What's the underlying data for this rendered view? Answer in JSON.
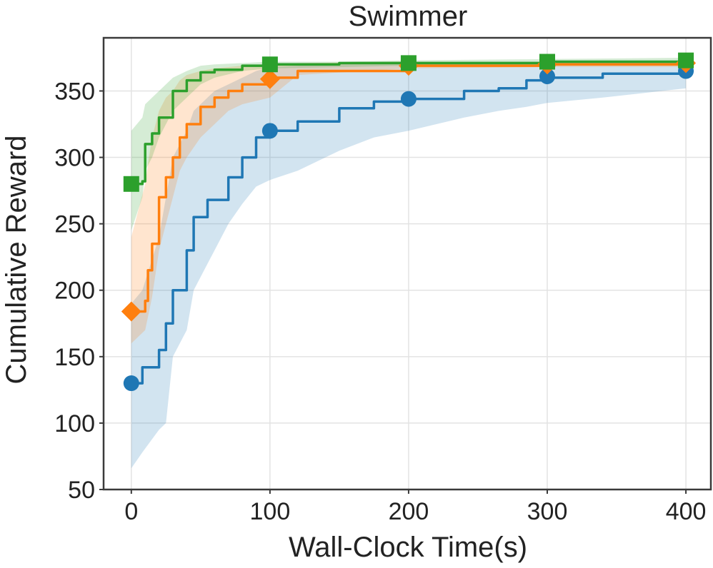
{
  "chart_data": {
    "type": "line",
    "title": "Swimmer",
    "xlabel": "Wall-Clock Time(s)",
    "ylabel": "Cumulative Reward",
    "xlim": [
      -20,
      418
    ],
    "ylim": [
      50,
      390
    ],
    "xticks": [
      0,
      100,
      200,
      300,
      400
    ],
    "yticks": [
      50,
      100,
      150,
      200,
      250,
      300,
      350
    ],
    "grid": true,
    "legend": null,
    "series": [
      {
        "name": "blue-circle",
        "color": "#1f77b4",
        "marker": "circle",
        "band_opacity": 0.2,
        "x": [
          0,
          8,
          20,
          25,
          30,
          40,
          45,
          55,
          60,
          70,
          80,
          90,
          100,
          120,
          150,
          175,
          200,
          240,
          265,
          285,
          300,
          340,
          400
        ],
        "y": [
          130,
          142,
          155,
          175,
          200,
          230,
          255,
          268,
          268,
          285,
          300,
          315,
          320,
          327,
          337,
          342,
          344,
          350,
          352,
          358,
          360,
          363,
          365
        ],
        "lower": [
          66,
          78,
          95,
          100,
          150,
          170,
          200,
          220,
          230,
          250,
          265,
          278,
          283,
          290,
          305,
          315,
          320,
          330,
          335,
          338,
          341,
          345,
          352
        ],
        "upper": [
          190,
          200,
          240,
          270,
          300,
          320,
          335,
          345,
          350,
          355,
          360,
          365,
          368,
          369,
          370,
          371,
          371,
          372,
          372,
          372,
          372,
          372,
          372
        ],
        "markers_x": [
          0,
          100,
          200,
          300,
          400
        ],
        "markers_y": [
          130,
          320,
          344,
          361,
          365
        ]
      },
      {
        "name": "orange-diamond",
        "color": "#ff7f0e",
        "marker": "diamond",
        "band_opacity": 0.2,
        "x": [
          0,
          10,
          12,
          15,
          20,
          25,
          30,
          35,
          40,
          50,
          60,
          70,
          80,
          100,
          120,
          200,
          300,
          400
        ],
        "y": [
          184,
          192,
          215,
          235,
          270,
          285,
          300,
          315,
          325,
          338,
          345,
          350,
          355,
          360,
          365,
          369,
          370,
          370
        ],
        "lower": [
          160,
          170,
          180,
          195,
          230,
          250,
          270,
          290,
          300,
          315,
          325,
          335,
          340,
          345,
          362,
          367,
          368,
          368
        ],
        "upper": [
          240,
          280,
          295,
          315,
          335,
          345,
          350,
          358,
          362,
          365,
          367,
          368,
          369,
          370,
          371,
          372,
          372,
          372
        ],
        "markers_x": [
          0,
          100,
          200,
          300,
          400
        ],
        "markers_y": [
          184,
          359,
          369,
          370,
          371
        ]
      },
      {
        "name": "green-square",
        "color": "#2ca02c",
        "marker": "square",
        "band_opacity": 0.2,
        "x": [
          0,
          8,
          10,
          15,
          20,
          30,
          40,
          50,
          60,
          80,
          100,
          150,
          200,
          300,
          400
        ],
        "y": [
          280,
          282,
          310,
          318,
          330,
          350,
          358,
          364,
          366,
          369,
          370,
          371,
          371,
          372,
          373
        ],
        "lower": [
          245,
          270,
          290,
          300,
          315,
          335,
          345,
          355,
          360,
          365,
          367,
          368,
          369,
          370,
          371
        ],
        "upper": [
          320,
          330,
          340,
          345,
          350,
          360,
          365,
          369,
          370,
          371,
          372,
          372,
          373,
          374,
          375
        ],
        "markers_x": [
          0,
          100,
          200,
          300,
          400
        ],
        "markers_y": [
          280,
          370,
          371,
          372,
          373
        ]
      }
    ]
  }
}
